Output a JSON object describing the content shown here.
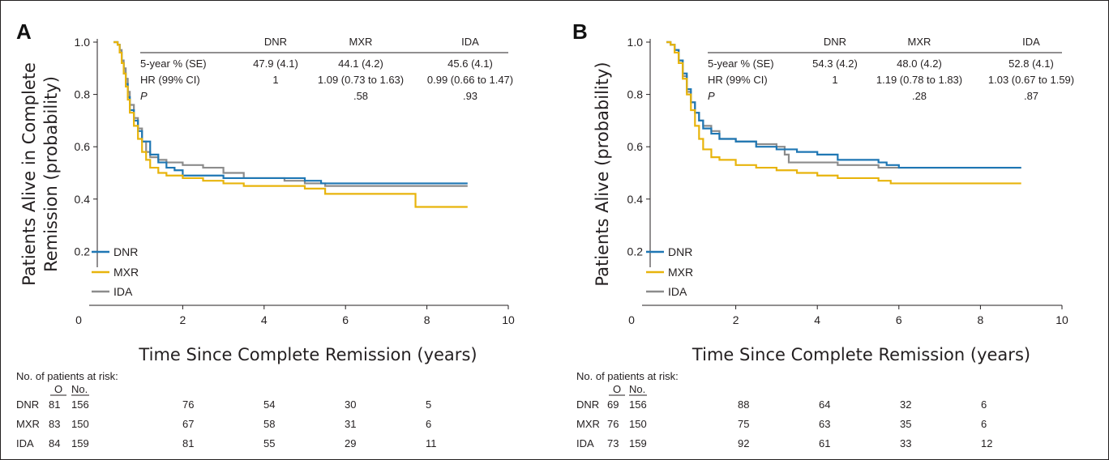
{
  "chart_data": [
    {
      "panel": "A",
      "type": "line",
      "ylabel_line1": "Patients Alive in Complete",
      "ylabel_line2": "Remission (probability)",
      "xlabel": "Time Since Complete Remission (years)",
      "xlim": [
        0,
        10
      ],
      "ylim": [
        0,
        1.0
      ],
      "x_ticks": [
        0,
        2,
        4,
        6,
        8,
        10
      ],
      "y_ticks": [
        0.2,
        0.4,
        0.6,
        0.8,
        1.0
      ],
      "y_tick_labels": [
        "0.2",
        "0.4",
        "0.6",
        "0.8",
        "1.0"
      ],
      "legend_position": "bottom-left",
      "stats_table": {
        "columns": [
          "DNR",
          "MXR",
          "IDA"
        ],
        "rows": [
          {
            "label": "5-year % (SE)",
            "values": [
              "47.9 (4.1)",
              "44.1 (4.2)",
              "45.6 (4.1)"
            ]
          },
          {
            "label": "HR (99% CI)",
            "values": [
              "1",
              "1.09 (0.73 to 1.63)",
              "0.99 (0.66 to 1.47)"
            ]
          },
          {
            "label": "P",
            "values": [
              "",
              ".58",
              ".93"
            ]
          }
        ]
      },
      "series": [
        {
          "name": "DNR",
          "color": "#1f77b4",
          "points": [
            [
              0.3,
              1.0
            ],
            [
              0.4,
              0.99
            ],
            [
              0.45,
              0.96
            ],
            [
              0.5,
              0.92
            ],
            [
              0.55,
              0.88
            ],
            [
              0.6,
              0.84
            ],
            [
              0.65,
              0.79
            ],
            [
              0.7,
              0.74
            ],
            [
              0.8,
              0.7
            ],
            [
              0.9,
              0.66
            ],
            [
              1.0,
              0.62
            ],
            [
              1.2,
              0.57
            ],
            [
              1.4,
              0.54
            ],
            [
              1.6,
              0.52
            ],
            [
              1.8,
              0.51
            ],
            [
              2.0,
              0.49
            ],
            [
              2.5,
              0.49
            ],
            [
              3.0,
              0.48
            ],
            [
              3.5,
              0.48
            ],
            [
              4.0,
              0.48
            ],
            [
              5.0,
              0.47
            ],
            [
              5.4,
              0.46
            ],
            [
              6.0,
              0.46
            ],
            [
              9.0,
              0.46
            ]
          ]
        },
        {
          "name": "MXR",
          "color": "#e8b40c",
          "points": [
            [
              0.3,
              1.0
            ],
            [
              0.4,
              0.99
            ],
            [
              0.45,
              0.96
            ],
            [
              0.5,
              0.92
            ],
            [
              0.55,
              0.88
            ],
            [
              0.6,
              0.83
            ],
            [
              0.65,
              0.78
            ],
            [
              0.7,
              0.73
            ],
            [
              0.8,
              0.68
            ],
            [
              0.9,
              0.63
            ],
            [
              1.0,
              0.58
            ],
            [
              1.1,
              0.55
            ],
            [
              1.2,
              0.52
            ],
            [
              1.4,
              0.5
            ],
            [
              1.6,
              0.49
            ],
            [
              2.0,
              0.48
            ],
            [
              2.5,
              0.47
            ],
            [
              3.0,
              0.46
            ],
            [
              3.5,
              0.45
            ],
            [
              4.0,
              0.45
            ],
            [
              5.0,
              0.44
            ],
            [
              5.5,
              0.42
            ],
            [
              6.0,
              0.42
            ],
            [
              7.7,
              0.42
            ],
            [
              7.72,
              0.37
            ],
            [
              9.0,
              0.37
            ]
          ]
        },
        {
          "name": "IDA",
          "color": "#8c8c8c",
          "points": [
            [
              0.3,
              1.0
            ],
            [
              0.4,
              0.99
            ],
            [
              0.45,
              0.97
            ],
            [
              0.5,
              0.93
            ],
            [
              0.55,
              0.9
            ],
            [
              0.6,
              0.86
            ],
            [
              0.65,
              0.81
            ],
            [
              0.7,
              0.76
            ],
            [
              0.8,
              0.71
            ],
            [
              0.9,
              0.67
            ],
            [
              1.0,
              0.62
            ],
            [
              1.1,
              0.58
            ],
            [
              1.2,
              0.56
            ],
            [
              1.4,
              0.55
            ],
            [
              1.6,
              0.54
            ],
            [
              2.0,
              0.53
            ],
            [
              2.5,
              0.52
            ],
            [
              3.0,
              0.5
            ],
            [
              3.5,
              0.48
            ],
            [
              4.0,
              0.48
            ],
            [
              4.5,
              0.47
            ],
            [
              5.0,
              0.46
            ],
            [
              5.5,
              0.45
            ],
            [
              6.0,
              0.45
            ],
            [
              9.0,
              0.45
            ]
          ]
        }
      ],
      "risk_table": {
        "title": "No. of patients at risk:",
        "header_O": "O",
        "header_No": "No.",
        "time_points": [
          2,
          4,
          6,
          8
        ],
        "rows": [
          {
            "label": "DNR",
            "O": "81",
            "No": "156",
            "values": [
              "76",
              "54",
              "30",
              "5"
            ]
          },
          {
            "label": "MXR",
            "O": "83",
            "No": "150",
            "values": [
              "67",
              "58",
              "31",
              "6"
            ]
          },
          {
            "label": "IDA",
            "O": "84",
            "No": "159",
            "values": [
              "81",
              "55",
              "29",
              "11"
            ]
          }
        ]
      }
    },
    {
      "panel": "B",
      "type": "line",
      "ylabel_line1": "Patients Alive (probability)",
      "ylabel_line2": "",
      "xlabel": "Time Since Complete Remission (years)",
      "xlim": [
        0,
        10
      ],
      "ylim": [
        0,
        1.0
      ],
      "x_ticks": [
        0,
        2,
        4,
        6,
        8,
        10
      ],
      "y_ticks": [
        0.2,
        0.4,
        0.6,
        0.8,
        1.0
      ],
      "y_tick_labels": [
        "0.2",
        "0.4",
        "0.6",
        "0.8",
        "1.0"
      ],
      "legend_position": "bottom-left",
      "stats_table": {
        "columns": [
          "DNR",
          "MXR",
          "IDA"
        ],
        "rows": [
          {
            "label": "5-year % (SE)",
            "values": [
              "54.3 (4.2)",
              "48.0 (4.2)",
              "52.8 (4.1)"
            ]
          },
          {
            "label": "HR (99% CI)",
            "values": [
              "1",
              "1.19 (0.78 to 1.83)",
              "1.03 (0.67 to 1.59)"
            ]
          },
          {
            "label": "P",
            "values": [
              "",
              ".28",
              ".87"
            ]
          }
        ]
      },
      "series": [
        {
          "name": "DNR",
          "color": "#1f77b4",
          "points": [
            [
              0.3,
              1.0
            ],
            [
              0.4,
              0.99
            ],
            [
              0.5,
              0.97
            ],
            [
              0.6,
              0.93
            ],
            [
              0.7,
              0.88
            ],
            [
              0.8,
              0.82
            ],
            [
              0.9,
              0.77
            ],
            [
              1.0,
              0.73
            ],
            [
              1.1,
              0.7
            ],
            [
              1.2,
              0.67
            ],
            [
              1.4,
              0.65
            ],
            [
              1.6,
              0.63
            ],
            [
              2.0,
              0.62
            ],
            [
              2.5,
              0.6
            ],
            [
              3.0,
              0.59
            ],
            [
              3.5,
              0.58
            ],
            [
              4.0,
              0.57
            ],
            [
              4.5,
              0.55
            ],
            [
              5.0,
              0.55
            ],
            [
              5.5,
              0.54
            ],
            [
              5.7,
              0.53
            ],
            [
              6.0,
              0.52
            ],
            [
              9.0,
              0.52
            ]
          ]
        },
        {
          "name": "MXR",
          "color": "#e8b40c",
          "points": [
            [
              0.3,
              1.0
            ],
            [
              0.4,
              0.99
            ],
            [
              0.5,
              0.96
            ],
            [
              0.6,
              0.92
            ],
            [
              0.7,
              0.86
            ],
            [
              0.8,
              0.8
            ],
            [
              0.9,
              0.74
            ],
            [
              1.0,
              0.68
            ],
            [
              1.1,
              0.63
            ],
            [
              1.2,
              0.59
            ],
            [
              1.4,
              0.56
            ],
            [
              1.6,
              0.55
            ],
            [
              2.0,
              0.53
            ],
            [
              2.5,
              0.52
            ],
            [
              3.0,
              0.51
            ],
            [
              3.5,
              0.5
            ],
            [
              4.0,
              0.49
            ],
            [
              4.5,
              0.48
            ],
            [
              5.0,
              0.48
            ],
            [
              5.5,
              0.47
            ],
            [
              5.8,
              0.46
            ],
            [
              6.0,
              0.46
            ],
            [
              9.0,
              0.46
            ]
          ]
        },
        {
          "name": "IDA",
          "color": "#8c8c8c",
          "points": [
            [
              0.3,
              1.0
            ],
            [
              0.4,
              0.99
            ],
            [
              0.5,
              0.97
            ],
            [
              0.6,
              0.93
            ],
            [
              0.7,
              0.87
            ],
            [
              0.8,
              0.81
            ],
            [
              0.9,
              0.77
            ],
            [
              1.0,
              0.73
            ],
            [
              1.1,
              0.7
            ],
            [
              1.2,
              0.68
            ],
            [
              1.4,
              0.66
            ],
            [
              1.6,
              0.63
            ],
            [
              2.0,
              0.62
            ],
            [
              2.5,
              0.61
            ],
            [
              3.0,
              0.6
            ],
            [
              3.2,
              0.57
            ],
            [
              3.3,
              0.54
            ],
            [
              4.0,
              0.54
            ],
            [
              4.5,
              0.53
            ],
            [
              5.0,
              0.53
            ],
            [
              5.5,
              0.52
            ],
            [
              6.0,
              0.52
            ],
            [
              9.0,
              0.52
            ]
          ]
        }
      ],
      "risk_table": {
        "title": "No. of patients at risk:",
        "header_O": "O",
        "header_No": "No.",
        "time_points": [
          2,
          4,
          6,
          8
        ],
        "rows": [
          {
            "label": "DNR",
            "O": "69",
            "No": "156",
            "values": [
              "88",
              "64",
              "32",
              "6"
            ]
          },
          {
            "label": "MXR",
            "O": "76",
            "No": "150",
            "values": [
              "75",
              "63",
              "35",
              "6"
            ]
          },
          {
            "label": "IDA",
            "O": "73",
            "No": "159",
            "values": [
              "92",
              "61",
              "33",
              "12"
            ]
          }
        ]
      }
    }
  ]
}
